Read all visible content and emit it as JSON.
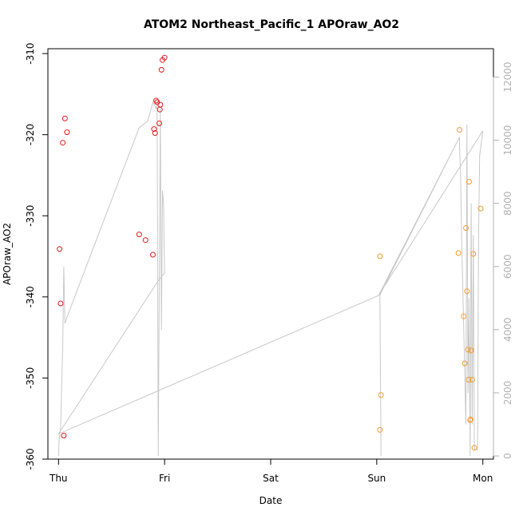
{
  "chart_data": {
    "type": "scatter",
    "title": "ATOM2 Northeast_Pacific_1 APOraw_AO2",
    "xlabel": "Date",
    "ylabel": "APOraw_AO2",
    "x_unit": "days",
    "xlim": [
      -0.1,
      4.1
    ],
    "ylim": [
      -360,
      -309.4
    ],
    "x_ticks": [
      0,
      1,
      2,
      3,
      4
    ],
    "x_tick_labels": [
      "Thu",
      "Fri",
      "Sat",
      "Sun",
      "Mon"
    ],
    "y_ticks": [
      -360,
      -350,
      -340,
      -330,
      -320,
      -310
    ],
    "y2_lim": [
      -100,
      12900
    ],
    "y2_ticks": [
      0,
      2000,
      4000,
      6000,
      8000,
      10000,
      12000
    ],
    "grid": false,
    "colors": {
      "red_series": "#e41a1c",
      "orange_series": "#f39c2a",
      "line": "#c8c8c8",
      "right_axis": "#b0b0b0"
    },
    "series": [
      {
        "marker": "open-circle",
        "color": "#e41a1c",
        "points": [
          [
            0.01,
            -334.1
          ],
          [
            0.02,
            -340.8
          ],
          [
            0.04,
            -321.0
          ],
          [
            0.05,
            -357.1
          ],
          [
            0.06,
            -318.0
          ],
          [
            0.08,
            -319.7
          ],
          [
            0.76,
            -332.3
          ],
          [
            0.82,
            -333.0
          ],
          [
            0.89,
            -334.8
          ],
          [
            0.9,
            -319.3
          ],
          [
            0.91,
            -319.8
          ],
          [
            0.92,
            -315.8
          ],
          [
            0.93,
            -316.0
          ],
          [
            0.95,
            -318.6
          ],
          [
            0.955,
            -316.9
          ],
          [
            0.96,
            -316.3
          ],
          [
            0.97,
            -312.0
          ],
          [
            0.98,
            -310.8
          ],
          [
            1.0,
            -310.5
          ]
        ]
      },
      {
        "marker": "open-circle",
        "color": "#f39c2a",
        "points": [
          [
            3.03,
            -335.0
          ],
          [
            3.03,
            -356.4
          ],
          [
            3.04,
            -352.1
          ],
          [
            3.77,
            -334.6
          ],
          [
            3.78,
            -319.4
          ],
          [
            3.82,
            -342.4
          ],
          [
            3.83,
            -348.2
          ],
          [
            3.84,
            -331.5
          ],
          [
            3.85,
            -339.3
          ],
          [
            3.86,
            -346.5
          ],
          [
            3.865,
            -350.2
          ],
          [
            3.87,
            -325.8
          ],
          [
            3.88,
            -355.2
          ],
          [
            3.885,
            -355.1
          ],
          [
            3.89,
            -346.6
          ],
          [
            3.9,
            -350.2
          ],
          [
            3.91,
            -334.7
          ],
          [
            3.92,
            -358.6
          ],
          [
            3.98,
            -329.1
          ]
        ]
      }
    ],
    "line_series": {
      "axis": "right",
      "color": "#c8c8c8",
      "points": [
        [
          0.0,
          0
        ],
        [
          0.005,
          500
        ],
        [
          0.02,
          900
        ],
        [
          0.04,
          3500
        ],
        [
          0.05,
          6000
        ],
        [
          0.06,
          4200
        ],
        [
          0.08,
          4400
        ],
        [
          0.76,
          10400
        ],
        [
          0.84,
          10600
        ],
        [
          0.89,
          11200
        ],
        [
          0.92,
          11000
        ],
        [
          0.93,
          11100
        ],
        [
          0.94,
          0
        ],
        [
          0.96,
          11000
        ],
        [
          0.97,
          4000
        ],
        [
          0.98,
          8400
        ],
        [
          0.99,
          8000
        ],
        [
          1.0,
          5800
        ],
        [
          0.95,
          5600
        ],
        [
          0.0,
          700
        ],
        [
          3.03,
          5100
        ],
        [
          3.04,
          0
        ],
        [
          3.03,
          5100
        ],
        [
          3.78,
          10100
        ],
        [
          3.78,
          9800
        ],
        [
          3.79,
          9000
        ],
        [
          3.8,
          7000
        ],
        [
          3.82,
          4000
        ],
        [
          3.84,
          1000
        ],
        [
          3.85,
          10500
        ],
        [
          3.86,
          2000
        ],
        [
          3.87,
          5000
        ],
        [
          3.88,
          0
        ],
        [
          3.89,
          8000
        ],
        [
          3.9,
          1000
        ],
        [
          3.91,
          7000
        ],
        [
          3.92,
          200
        ],
        [
          3.95,
          200
        ],
        [
          3.96,
          7000
        ],
        [
          3.97,
          9500
        ],
        [
          4.0,
          10300
        ],
        [
          3.02,
          5100
        ],
        [
          3.78,
          10100
        ]
      ]
    }
  }
}
